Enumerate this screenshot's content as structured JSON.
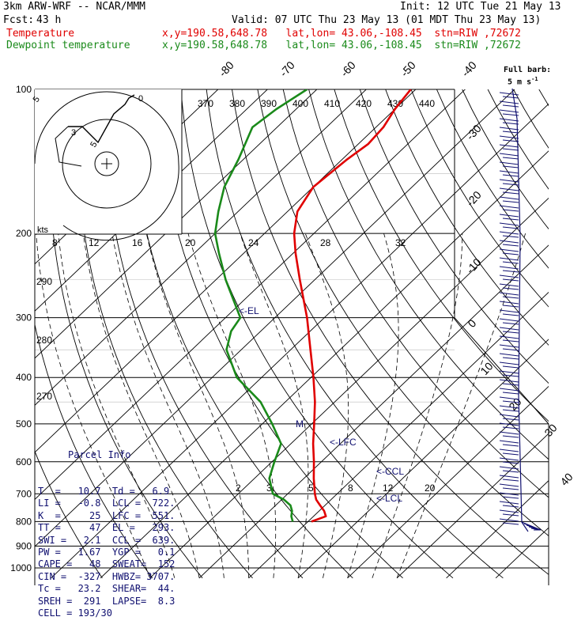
{
  "header": {
    "model": "3km ARW-WRF -- NCAR/MMM",
    "init": "Init: 12 UTC Tue 21 May 13",
    "fcst_label": "Fcst:",
    "fcst_value": "43 h",
    "valid": "Valid: 07 UTC Thu 23 May 13 (01 MDT Thu 23 May 13)",
    "temp_label": "Temperature",
    "dew_label": "Dewpoint temperature",
    "temp_loc": "x,y=190.58,648.78   lat,lon= 43.06,-108.45  stn=RIW ,72672",
    "dew_loc": "x,y=190.58,648.78   lat,lon= 43.06,-108.45  stn=RIW ,72672"
  },
  "barb_legend": {
    "line1": "Full barb:",
    "line2": "5 m s",
    "sup": "-1"
  },
  "hodograph_label": "kts",
  "colors": {
    "temperature": "#e00000",
    "dewpoint": "#1a8a1a",
    "text": "#101070",
    "grid": "#000000"
  },
  "chart_data": {
    "type": "line",
    "pressure_levels": [
      100,
      200,
      300,
      400,
      500,
      600,
      700,
      800,
      900,
      1000
    ],
    "pressure_labels": [
      "100",
      "200",
      "300",
      "400",
      "500",
      "600",
      "700",
      "800",
      "900",
      "1000"
    ],
    "isotherm_labels": [
      "-80",
      "-70",
      "-60",
      "-50",
      "-40",
      "-30",
      "-20",
      "-10",
      "0",
      "10",
      "20",
      "30",
      "40"
    ],
    "theta_labels": [
      "370",
      "380",
      "390",
      "400",
      "410",
      "420",
      "430",
      "440"
    ],
    "mixing_ratio_upper": [
      "8",
      "12",
      "16",
      "20",
      "24",
      "28",
      "32"
    ],
    "mixing_ratio_lower": [
      "2",
      "3",
      "5",
      "8",
      "12",
      "20"
    ],
    "dry_adiabat_labels": [
      "290",
      "280",
      "270"
    ],
    "hodo_labels": [
      "5",
      "3",
      "5",
      "0"
    ],
    "level_markers": [
      {
        "label": "EL",
        "p": 293
      },
      {
        "label": "M",
        "p": 510
      },
      {
        "label": "LFC",
        "p": 551
      },
      {
        "label": "CCL",
        "p": 639
      },
      {
        "label": "LCL",
        "p": 722
      }
    ],
    "series": [
      {
        "name": "Temperature",
        "p": [
          800,
          780,
          760,
          740,
          720,
          700,
          650,
          600,
          550,
          500,
          450,
          400,
          350,
          300,
          250,
          220,
          200,
          180,
          160,
          140,
          130,
          120,
          110,
          100
        ],
        "t": [
          10.7,
          12.5,
          11.0,
          9.0,
          7.0,
          5.5,
          2.0,
          -1.5,
          -5.5,
          -9.5,
          -14.0,
          -19.5,
          -26.0,
          -33.5,
          -43.0,
          -49.5,
          -54.0,
          -58.0,
          -60.0,
          -59.0,
          -58.0,
          -58.5,
          -60.0,
          -61.0
        ]
      },
      {
        "name": "Dewpoint temperature",
        "p": [
          800,
          780,
          760,
          740,
          720,
          700,
          650,
          600,
          550,
          500,
          450,
          400,
          350,
          320,
          300,
          250,
          220,
          200,
          180,
          160,
          140,
          120,
          110,
          100
        ],
        "t": [
          6.9,
          5.5,
          4.5,
          3.0,
          0.5,
          -3.0,
          -7.0,
          -9.5,
          -12.0,
          -18.0,
          -25.0,
          -35.0,
          -43.0,
          -46.0,
          -47.0,
          -58.0,
          -65.0,
          -70.0,
          -74.0,
          -78.0,
          -81.0,
          -85.0,
          -84.0,
          -82.0
        ]
      }
    ]
  },
  "parcel_info": {
    "title": "Parcel Info",
    "rows": [
      "T  =   10.7  Td =   6.9",
      "LI =   -0.8  LCL =  722.",
      "K  =     25  LFC =  551.",
      "TT =     47  EL =   293.",
      "SWI =   2.1  CCL =  639.",
      "PW =   1.67  YGP =   0.1",
      "CAPE =   48  SWEAT=  152",
      "CIN =  -327  HWBZ= 3707.",
      "Tc =   23.2  SHEAR=  44.",
      "SREH =  291  LAPSE=  8.3",
      "CELL = 193/30"
    ]
  }
}
